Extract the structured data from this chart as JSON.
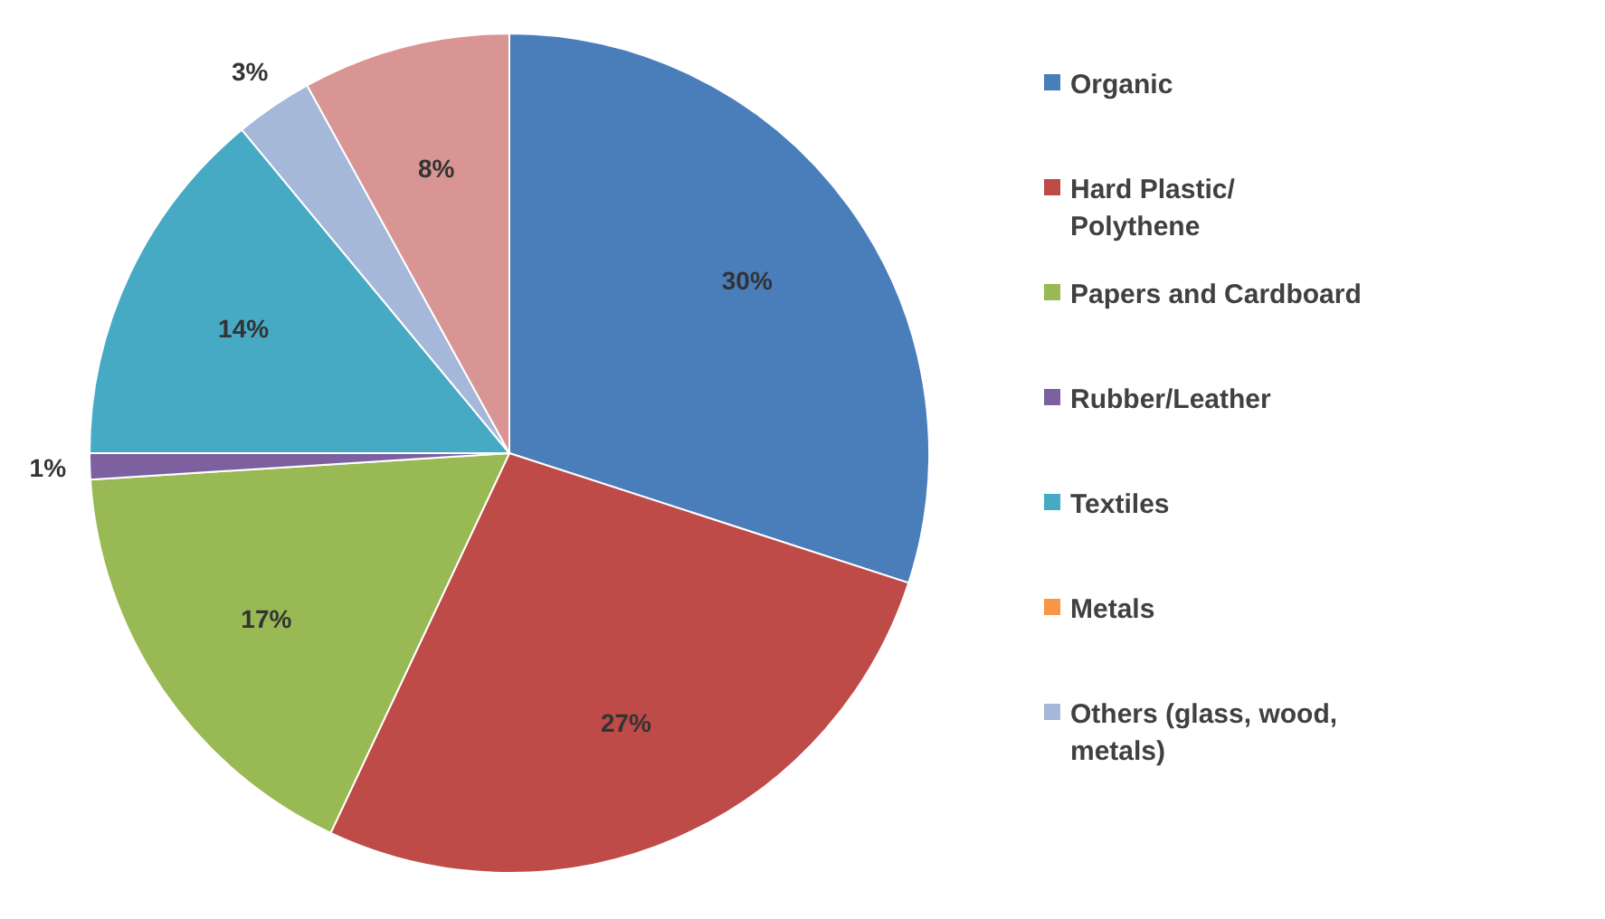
{
  "chart_data": {
    "type": "pie",
    "categories": [
      "Organic",
      "Hard Plastic/ Polythene",
      "Papers and Cardboard",
      "Rubber/Leather",
      "Textiles",
      "Metals",
      "Others (glass, wood, metals)",
      null
    ],
    "values": [
      30,
      27,
      17,
      1,
      14,
      0,
      3,
      8
    ],
    "value_labels": [
      "30%",
      "27%",
      "17%",
      "1%",
      "14%",
      null,
      "3%",
      "8%"
    ],
    "colors": [
      "#4a7ebb",
      "#be4b48",
      "#98b954",
      "#7d60a0",
      "#46aac5",
      "#f79646",
      "#a5b8d9",
      "#d99594"
    ],
    "legend": "right"
  }
}
